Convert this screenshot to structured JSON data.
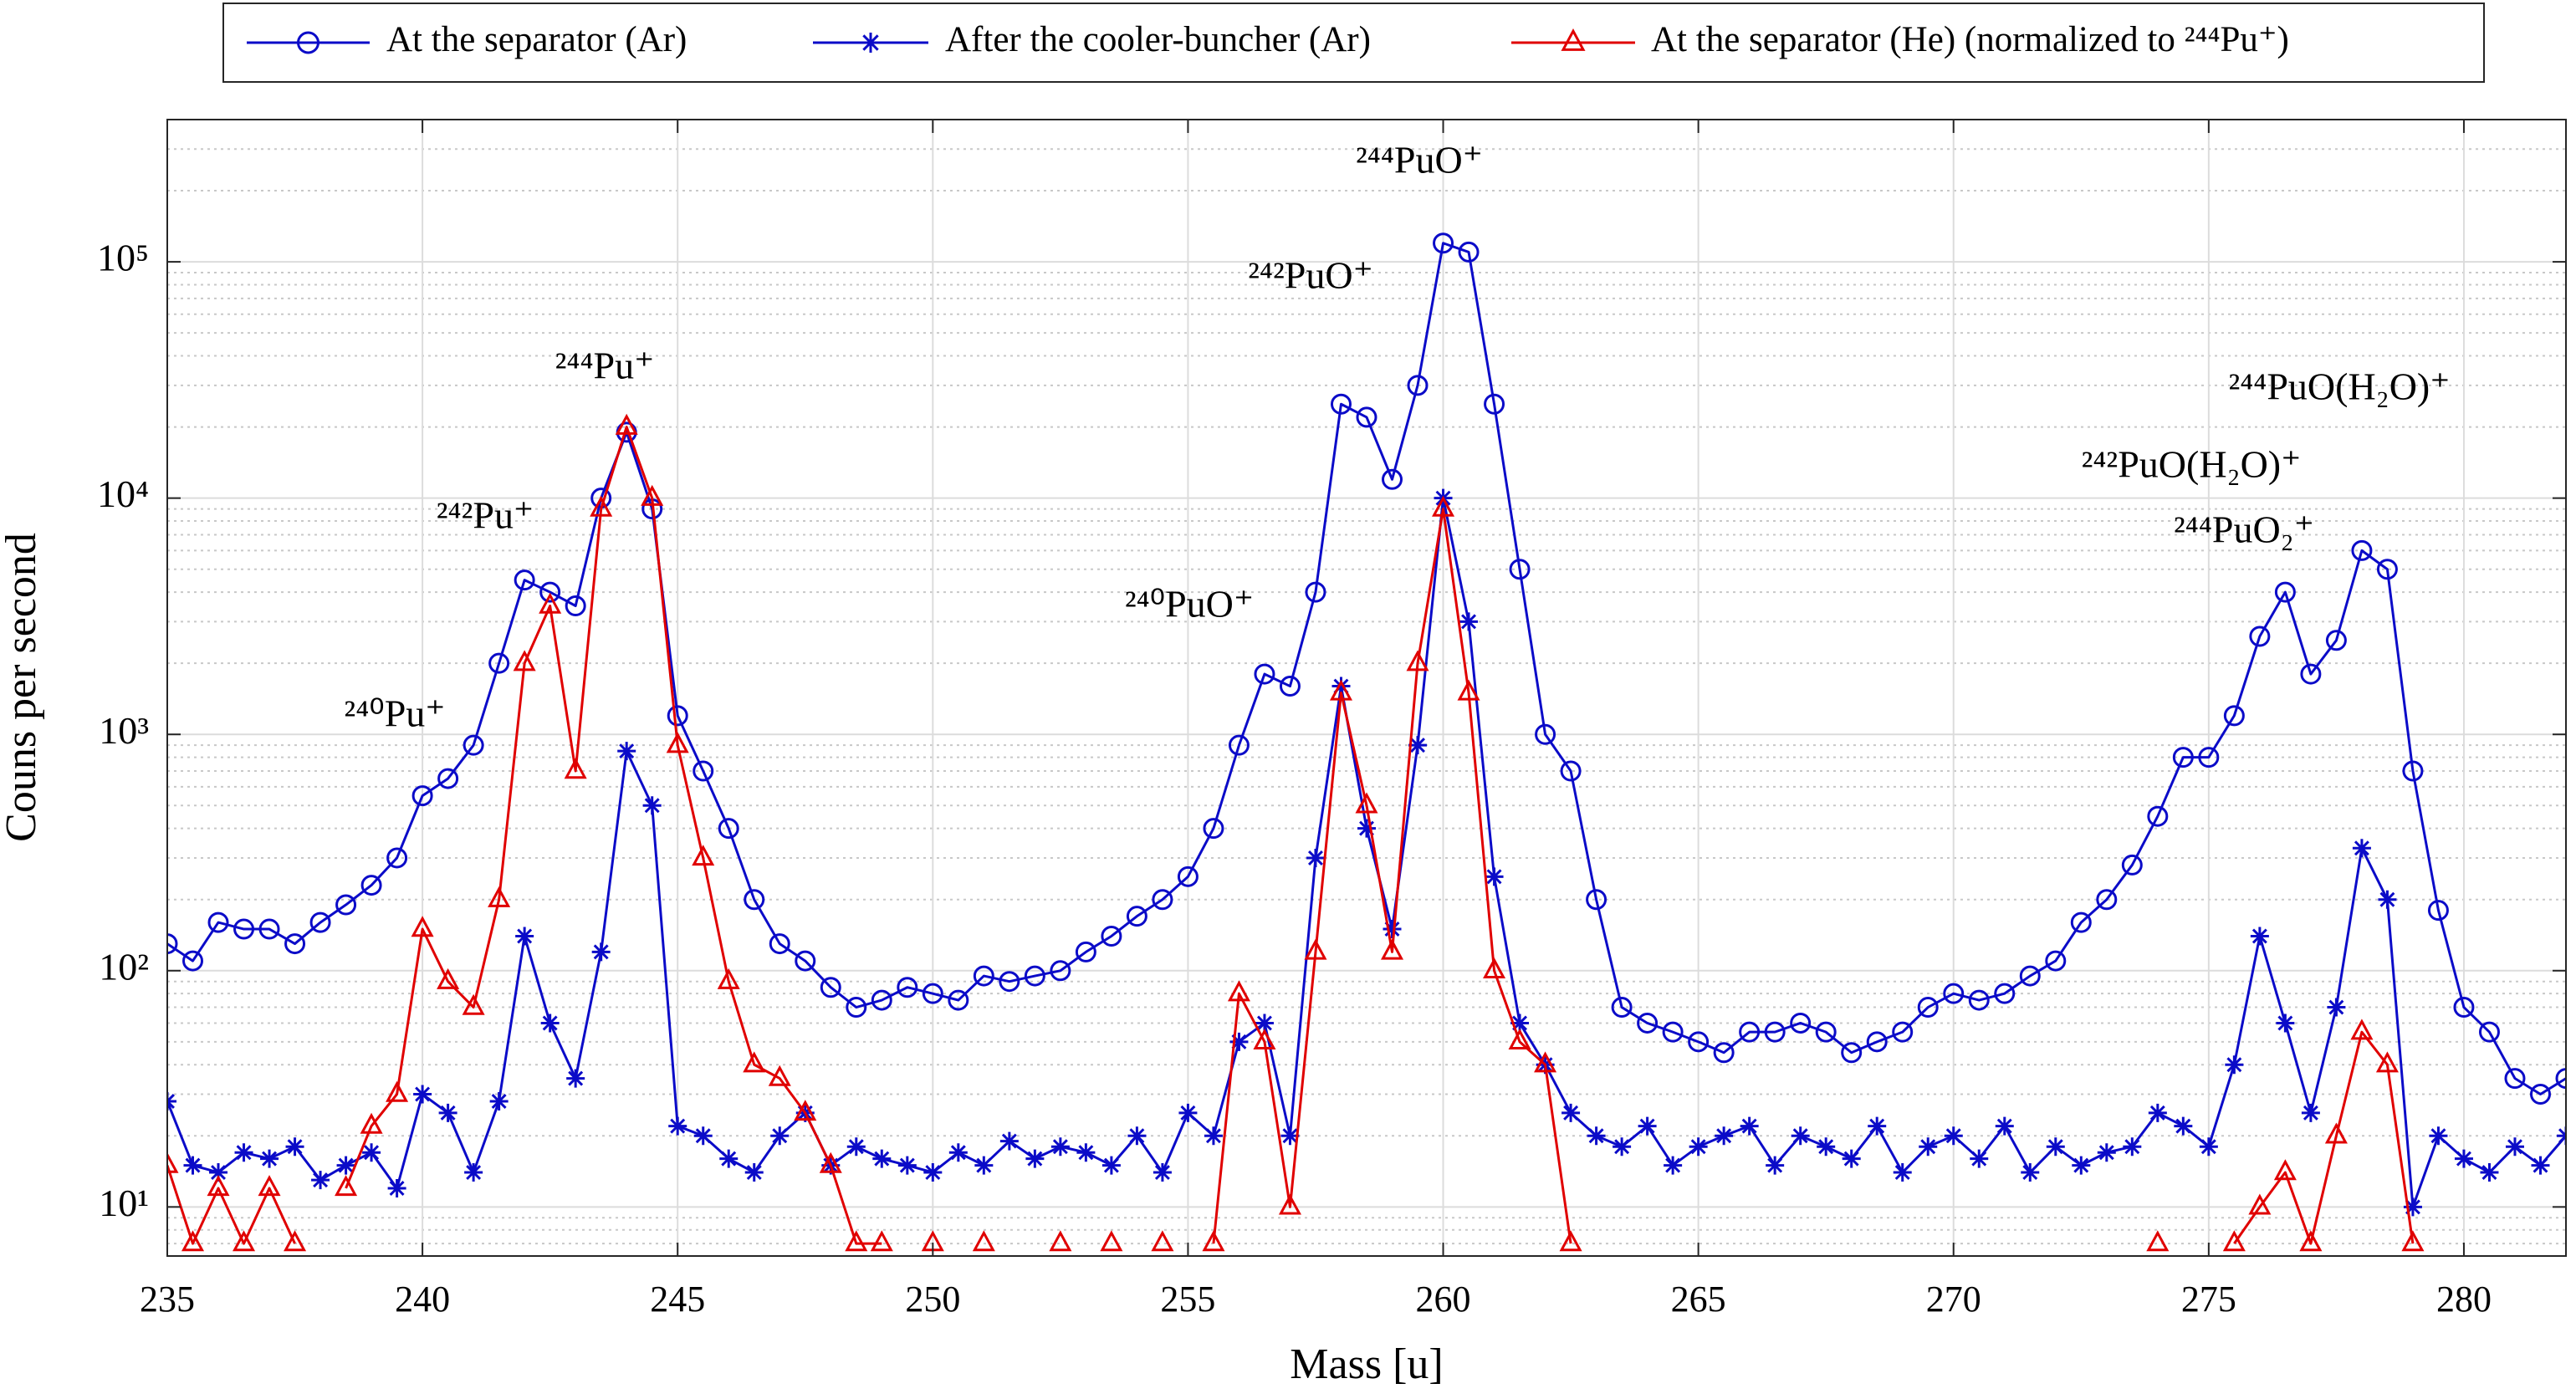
{
  "chart_data": {
    "type": "line",
    "x_label": "Mass [u]",
    "y_label": "Couns per second",
    "log_y": true,
    "grid": true,
    "minor_grid": true,
    "legend": "top-outside",
    "xlim": [
      235,
      282
    ],
    "xticks": [
      235,
      240,
      245,
      250,
      255,
      260,
      265,
      270,
      275,
      280
    ],
    "ylim": [
      6.2,
      400000
    ],
    "yticks": [
      {
        "value": 10,
        "label": "10¹"
      },
      {
        "value": 100,
        "label": "10²"
      },
      {
        "value": 1000,
        "label": "10³"
      },
      {
        "value": 10000,
        "label": "10⁴"
      },
      {
        "value": 100000,
        "label": "10⁵"
      }
    ],
    "x": [
      235,
      235.5,
      236,
      236.5,
      237,
      237.5,
      238,
      238.5,
      239,
      239.5,
      240,
      240.5,
      241,
      241.5,
      242,
      242.5,
      243,
      243.5,
      244,
      244.5,
      245,
      245.5,
      246,
      246.5,
      247,
      247.5,
      248,
      248.5,
      249,
      249.5,
      250,
      250.5,
      251,
      251.5,
      252,
      252.5,
      253,
      253.5,
      254,
      254.5,
      255,
      255.5,
      256,
      256.5,
      257,
      257.5,
      258,
      258.5,
      259,
      259.5,
      260,
      260.5,
      261,
      261.5,
      262,
      262.5,
      263,
      263.5,
      264,
      264.5,
      265,
      265.5,
      266,
      266.5,
      267,
      267.5,
      268,
      268.5,
      269,
      269.5,
      270,
      270.5,
      271,
      271.5,
      272,
      272.5,
      273,
      273.5,
      274,
      274.5,
      275,
      275.5,
      276,
      276.5,
      277,
      277.5,
      278,
      278.5,
      279,
      279.5,
      280,
      280.5,
      281,
      281.5,
      282
    ],
    "series": [
      {
        "name": "At the separator (Ar)",
        "color": "#0b0bc8",
        "marker": "circle",
        "values": [
          130,
          110,
          160,
          150,
          150,
          130,
          160,
          190,
          230,
          300,
          550,
          650,
          900,
          2000,
          4500,
          4000,
          3500,
          10000,
          19000,
          9000,
          1200,
          700,
          400,
          200,
          130,
          110,
          85,
          70,
          75,
          85,
          80,
          75,
          95,
          90,
          95,
          100,
          120,
          140,
          170,
          200,
          250,
          400,
          900,
          1800,
          1600,
          4000,
          25000,
          22000,
          12000,
          30000,
          120000,
          110000,
          25000,
          5000,
          1000,
          700,
          200,
          70,
          60,
          55,
          50,
          45,
          55,
          55,
          60,
          55,
          45,
          50,
          55,
          70,
          80,
          75,
          80,
          95,
          110,
          160,
          200,
          280,
          450,
          800,
          800,
          1200,
          2600,
          4000,
          1800,
          2500,
          6000,
          5000,
          700,
          180,
          70,
          55,
          35,
          30,
          35
        ]
      },
      {
        "name": "After the cooler-buncher (Ar)",
        "color": "#0b0bc8",
        "marker": "star",
        "values": [
          28,
          15,
          14,
          17,
          16,
          18,
          13,
          15,
          17,
          12,
          30,
          25,
          14,
          28,
          140,
          60,
          35,
          120,
          850,
          500,
          22,
          20,
          16,
          14,
          20,
          25,
          15,
          18,
          16,
          15,
          14,
          17,
          15,
          19,
          16,
          18,
          17,
          15,
          20,
          14,
          25,
          20,
          50,
          60,
          20,
          300,
          1600,
          400,
          150,
          900,
          10000,
          3000,
          250,
          60,
          40,
          25,
          20,
          18,
          22,
          15,
          18,
          20,
          22,
          15,
          20,
          18,
          16,
          22,
          14,
          18,
          20,
          16,
          22,
          14,
          18,
          15,
          17,
          18,
          25,
          22,
          18,
          40,
          140,
          60,
          25,
          70,
          330,
          200,
          10,
          20,
          16,
          14,
          18,
          15,
          20
        ]
      },
      {
        "name": "At the separator (He) (normalized to ²⁴⁴Pu⁺)",
        "color": "#e00000",
        "marker": "triangle",
        "values": [
          15,
          7,
          12,
          7,
          12,
          7,
          null,
          12,
          22,
          30,
          150,
          90,
          70,
          200,
          2000,
          3500,
          700,
          9000,
          20000,
          10000,
          900,
          300,
          90,
          40,
          35,
          25,
          15,
          7,
          7,
          null,
          7,
          null,
          7,
          null,
          null,
          7,
          null,
          7,
          null,
          7,
          null,
          7,
          80,
          50,
          10,
          120,
          1500,
          500,
          120,
          2000,
          9000,
          1500,
          100,
          50,
          40,
          7,
          null,
          null,
          null,
          null,
          null,
          null,
          null,
          null,
          null,
          null,
          null,
          null,
          null,
          null,
          null,
          null,
          null,
          null,
          null,
          null,
          null,
          null,
          7,
          null,
          null,
          7,
          10,
          14,
          7,
          20,
          55,
          40,
          7,
          null,
          null,
          null,
          null,
          null,
          null
        ]
      }
    ],
    "annotations": [
      "²⁴⁰Pu⁺",
      "²⁴²Pu⁺",
      "²⁴⁴Pu⁺",
      "²⁴²PuO⁺",
      "²⁴⁴PuO⁺",
      "²⁴⁰PuO⁺",
      "²⁴⁴PuO(H₂O)⁺",
      "²⁴²PuO(H₂O)⁺",
      "²⁴⁴PuO₂⁺"
    ]
  }
}
